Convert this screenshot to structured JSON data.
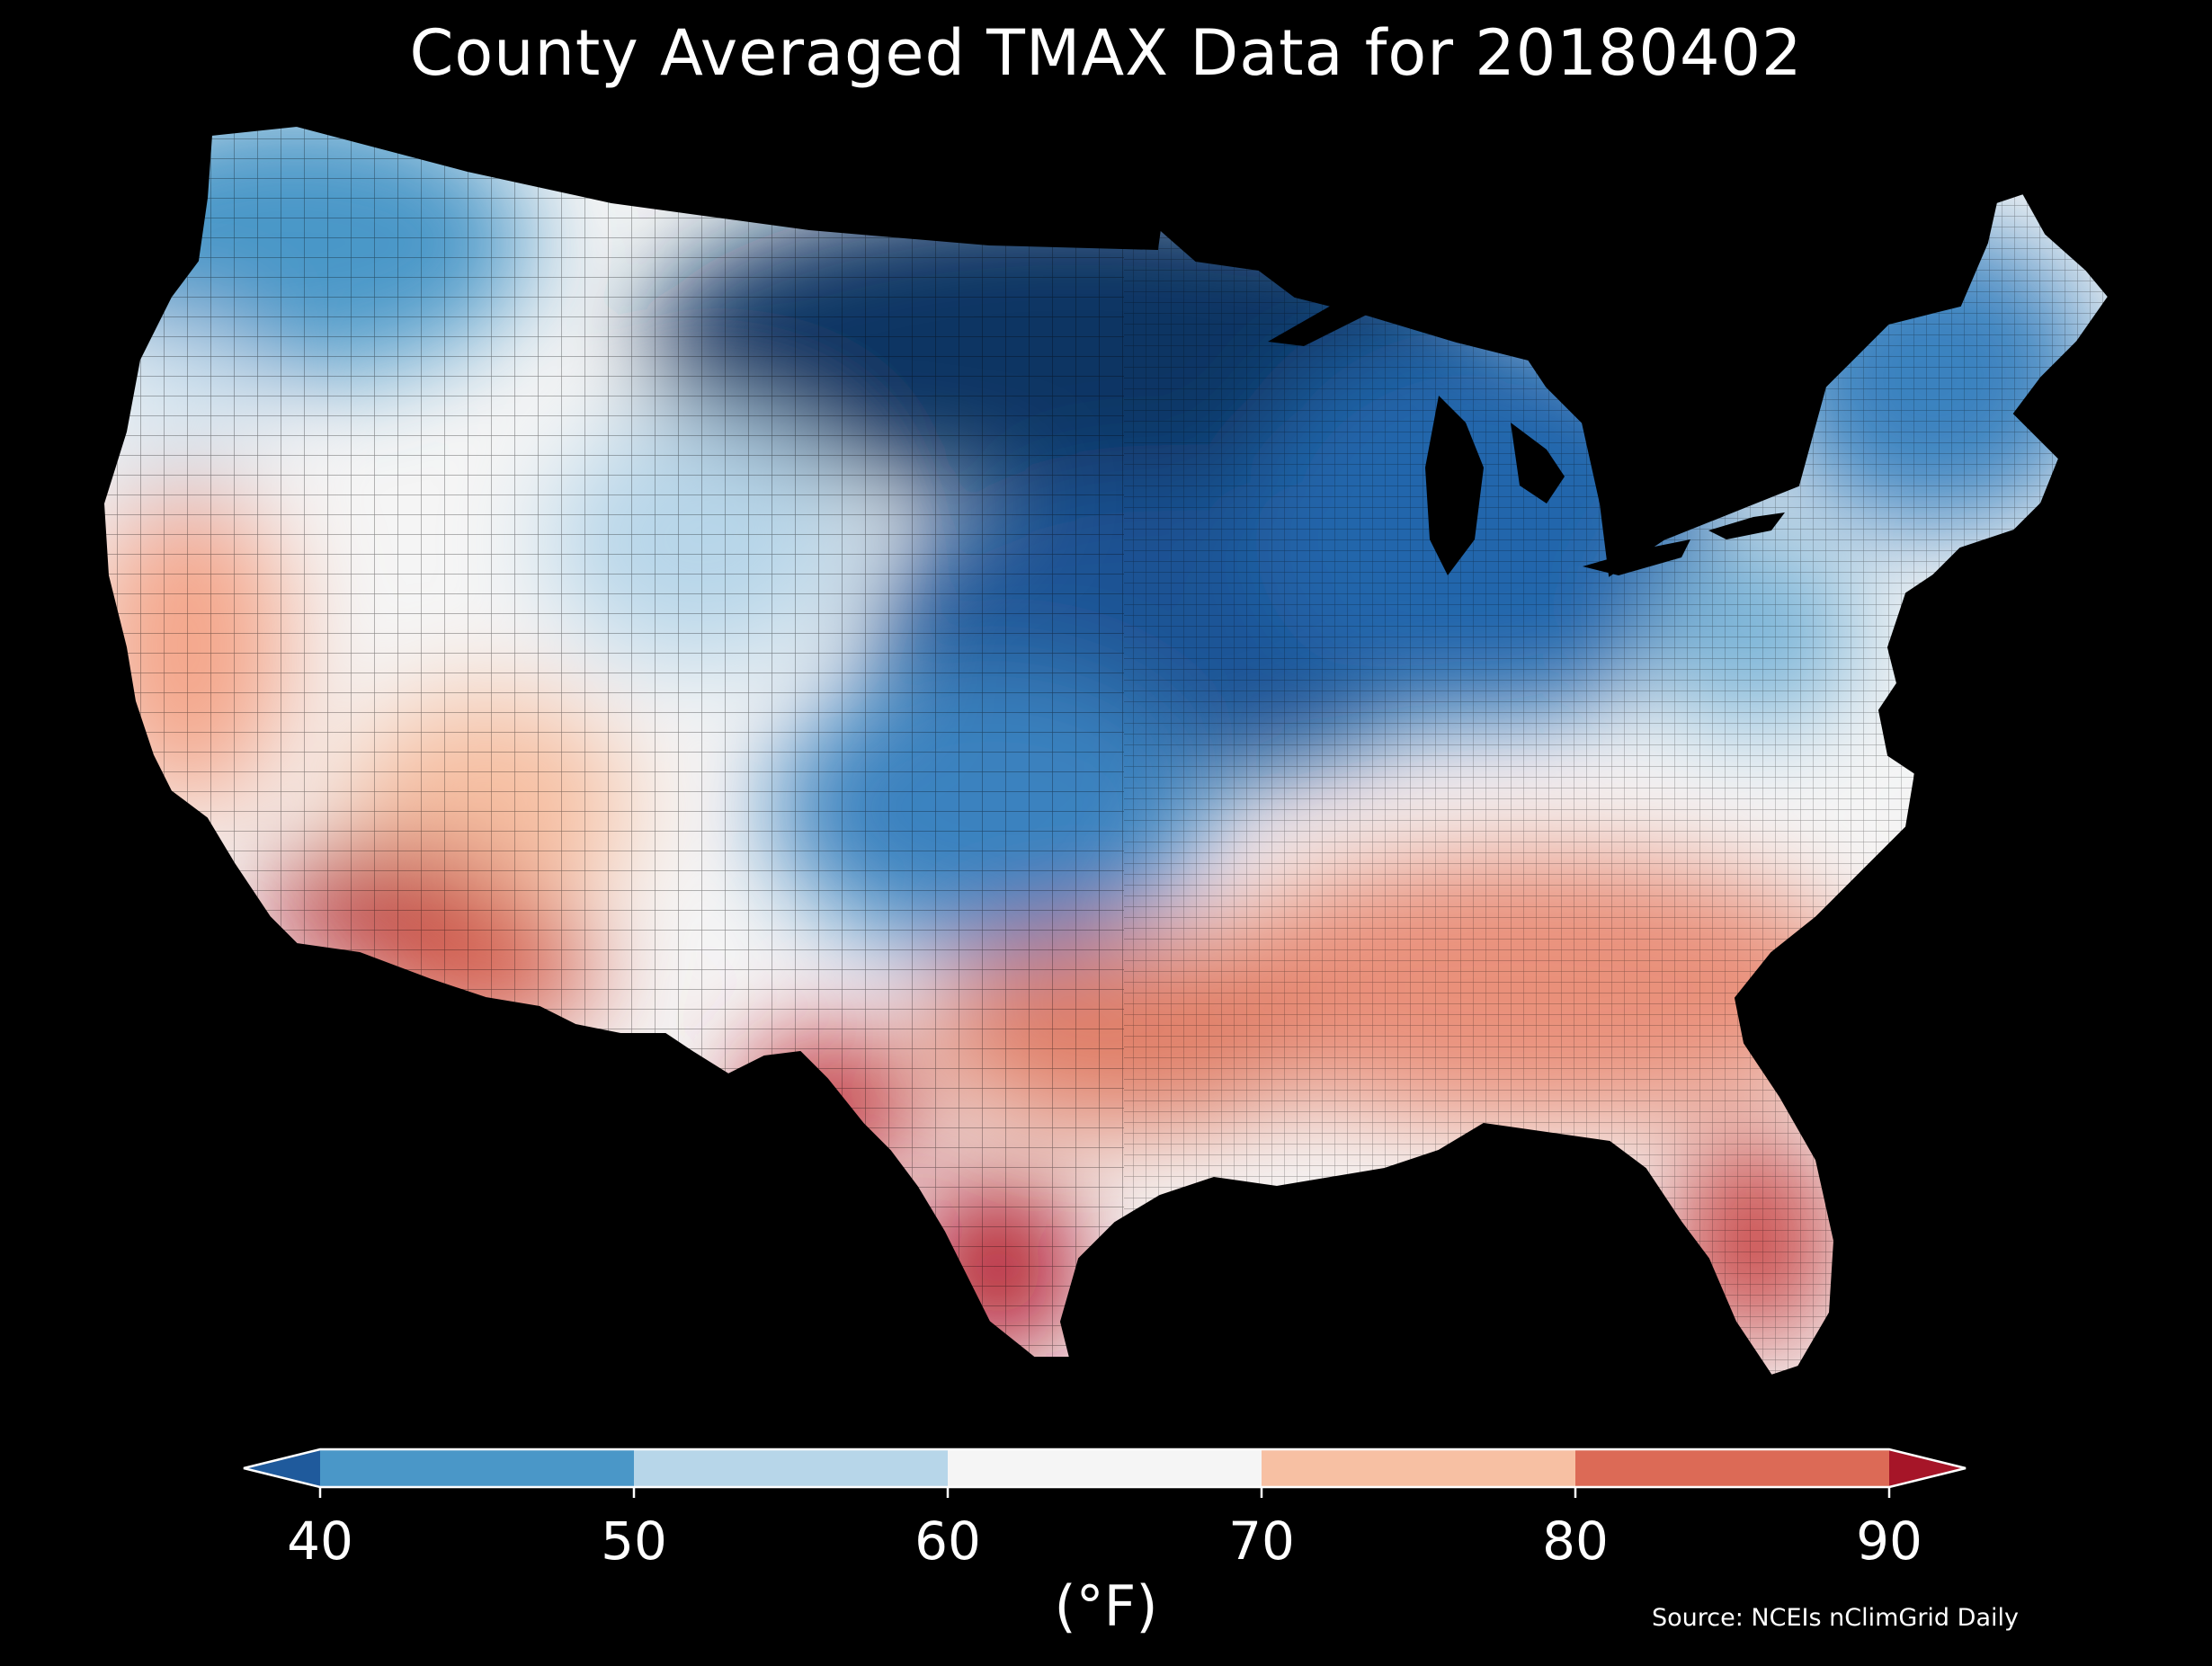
{
  "title": "County Averaged TMAX Data for 20180402",
  "colorbar": {
    "label": "(°F)",
    "ticks": [
      "40",
      "50",
      "60",
      "70",
      "80",
      "90"
    ],
    "bins": [
      {
        "range": "under",
        "color": "#1f5a9c"
      },
      {
        "range": "40-50",
        "color": "#4a97c8"
      },
      {
        "range": "50-60",
        "color": "#b7d6e9"
      },
      {
        "range": "60-70",
        "color": "#f5f5f5"
      },
      {
        "range": "70-80",
        "color": "#f7c0a3"
      },
      {
        "range": "80-90",
        "color": "#dc6a56"
      },
      {
        "range": "over",
        "color": "#a61528"
      }
    ]
  },
  "source": "Source: NCEIs nClimGrid Daily",
  "background_color": "#000000"
}
